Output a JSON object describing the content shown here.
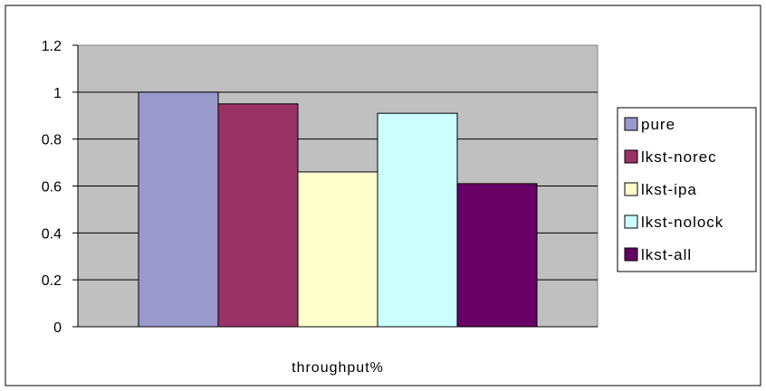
{
  "chart_data": {
    "type": "bar",
    "categories": [
      "throughput%"
    ],
    "series": [
      {
        "name": "pure",
        "values": [
          1.0
        ],
        "color": "#9999cc"
      },
      {
        "name": "lkst-norec",
        "values": [
          0.95
        ],
        "color": "#993366"
      },
      {
        "name": "lkst-ipa",
        "values": [
          0.66
        ],
        "color": "#ffffcc"
      },
      {
        "name": "lkst-nolock",
        "values": [
          0.91
        ],
        "color": "#ccffff"
      },
      {
        "name": "lkst-all",
        "values": [
          0.61
        ],
        "color": "#660066"
      }
    ],
    "title": "",
    "xlabel": "",
    "ylabel": "",
    "ylim": [
      0,
      1.2
    ],
    "yticks": [
      "0",
      "0.2",
      "0.4",
      "0.6",
      "0.8",
      "1",
      "1.2"
    ],
    "grid": true,
    "plot_background": "#c0c0c0",
    "legend_position": "right"
  }
}
